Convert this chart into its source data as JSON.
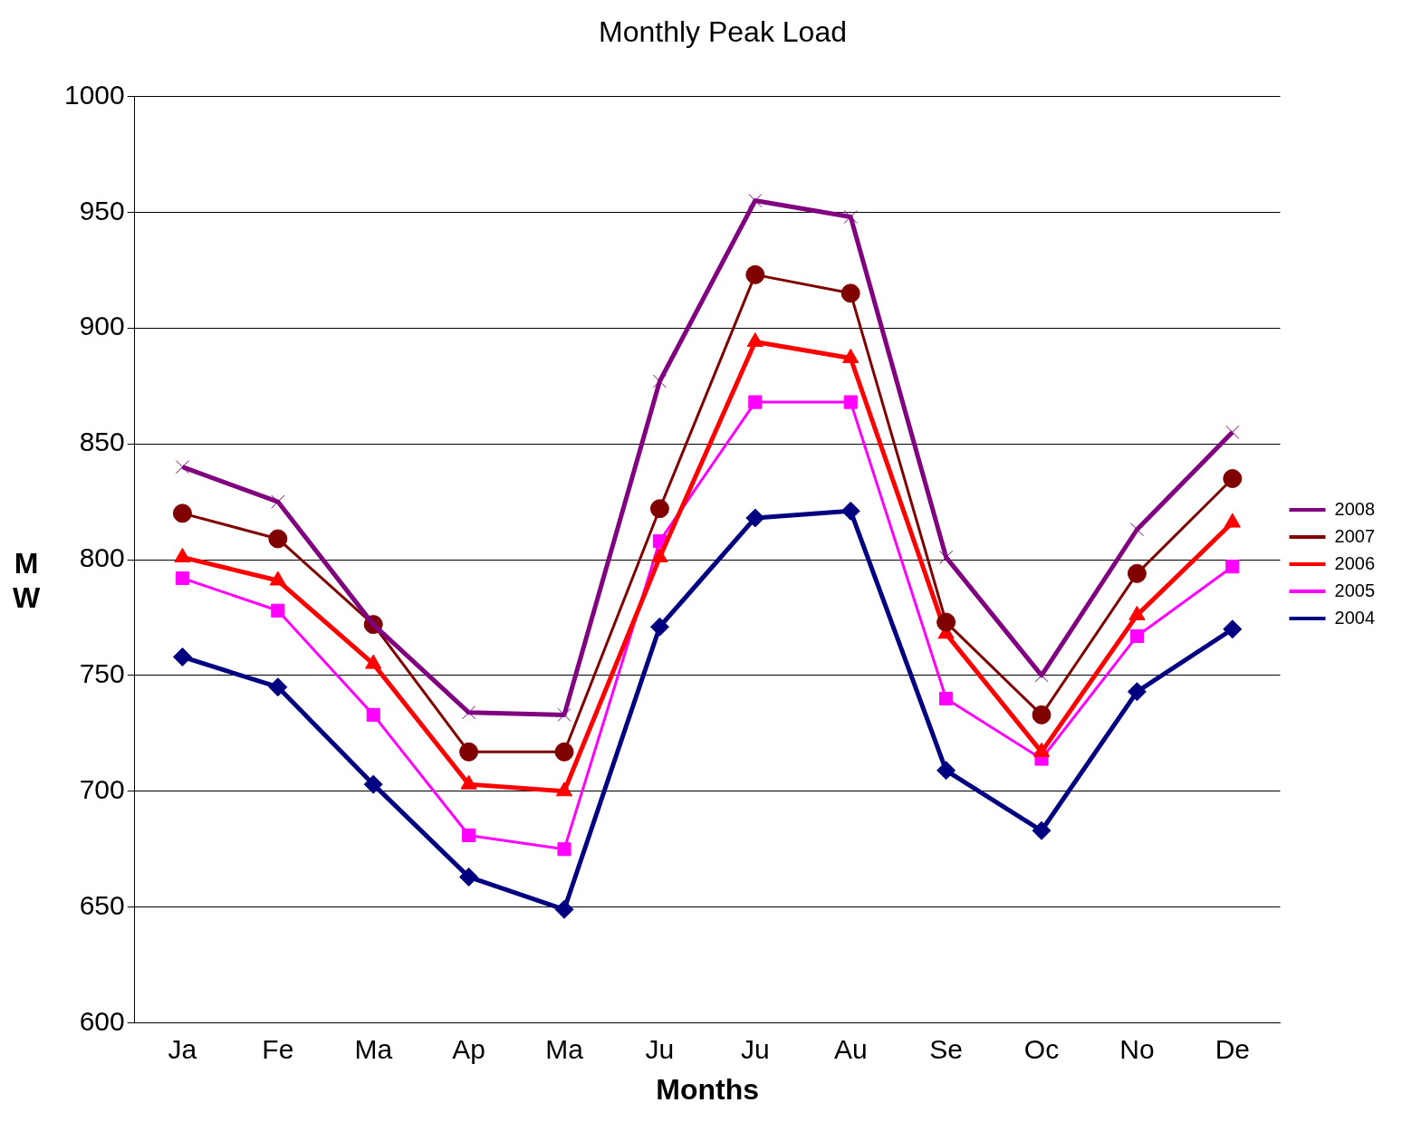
{
  "chart_data": {
    "type": "line",
    "title": "Monthly Peak Load",
    "xlabel": "Months",
    "ylabel": "MW",
    "categories": [
      "Ja",
      "Fe",
      "Ma",
      "Ap",
      "Ma",
      "Ju",
      "Ju",
      "Au",
      "Se",
      "Oc",
      "No",
      "De"
    ],
    "series": [
      {
        "name": "2008",
        "color": "#800080",
        "marker": "cross",
        "values": [
          840,
          825,
          772,
          734,
          733,
          877,
          955,
          948,
          801,
          750,
          813,
          855
        ]
      },
      {
        "name": "2007",
        "color": "#800000",
        "marker": "circle",
        "values": [
          820,
          809,
          772,
          717,
          717,
          822,
          923,
          915,
          773,
          733,
          794,
          835
        ]
      },
      {
        "name": "2006",
        "color": "#ff0000",
        "marker": "triangle",
        "values": [
          801,
          791,
          755,
          703,
          700,
          801,
          894,
          887,
          768,
          717,
          776,
          816
        ]
      },
      {
        "name": "2005",
        "color": "#ff00ff",
        "marker": "square",
        "values": [
          792,
          778,
          733,
          681,
          675,
          808,
          868,
          868,
          740,
          714,
          767,
          797
        ]
      },
      {
        "name": "2004",
        "color": "#000080",
        "marker": "diamond",
        "values": [
          758,
          745,
          703,
          663,
          649,
          771,
          818,
          821,
          709,
          683,
          743,
          770
        ]
      }
    ],
    "ylim": [
      600,
      1000
    ],
    "yticks": [
      600,
      650,
      700,
      750,
      800,
      850,
      900,
      950,
      1000
    ],
    "grid": "y",
    "legend": "right",
    "line_style": "solid"
  }
}
